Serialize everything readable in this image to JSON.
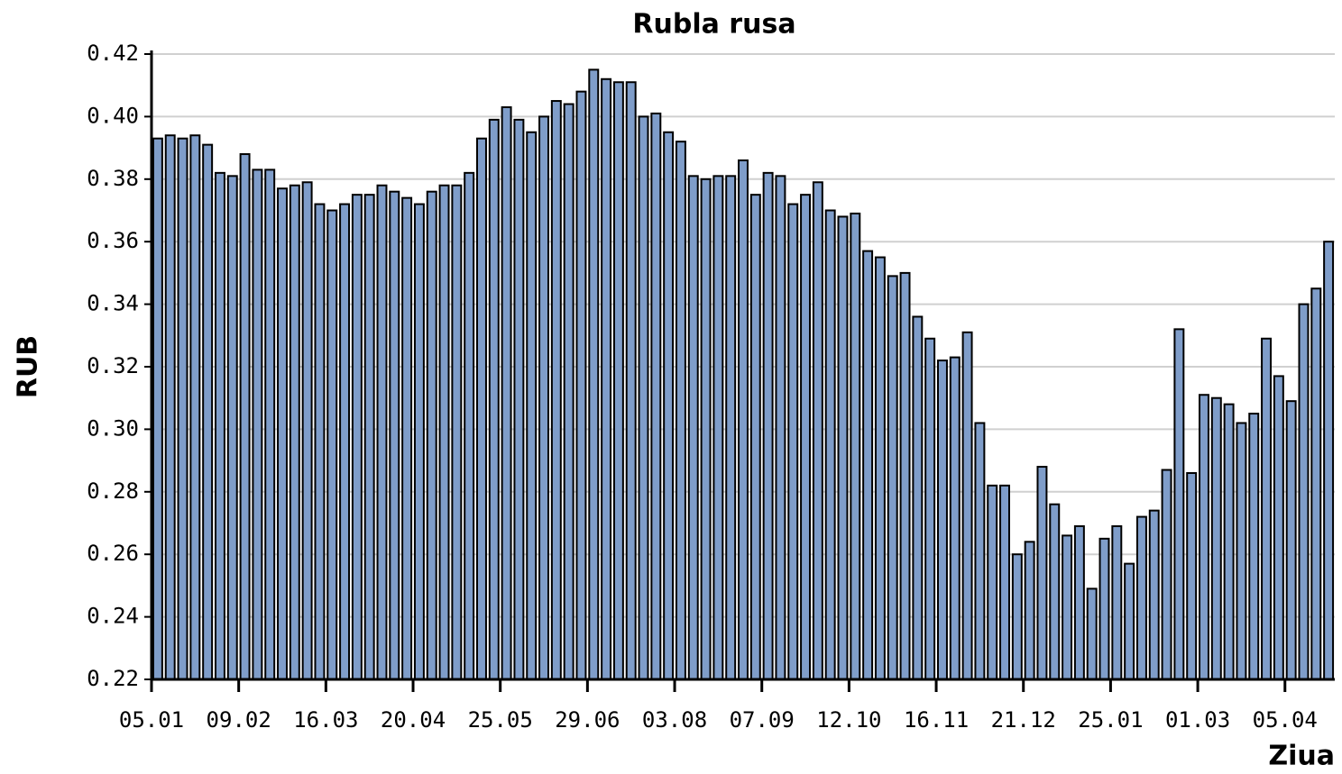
{
  "chart_data": {
    "type": "bar",
    "title": "Rubla rusa",
    "x_label": "Ziua",
    "y_label": "RUB",
    "color": "#7f9dc9",
    "grid": true,
    "ylim": [
      0.22,
      0.42
    ],
    "yticks": [
      {
        "value": 0.22,
        "label": "0.22"
      },
      {
        "value": 0.24,
        "label": "0.24"
      },
      {
        "value": 0.26,
        "label": "0.26"
      },
      {
        "value": 0.28,
        "label": "0.28"
      },
      {
        "value": 0.3,
        "label": "0.30"
      },
      {
        "value": 0.32,
        "label": "0.32"
      },
      {
        "value": 0.34,
        "label": "0.34"
      },
      {
        "value": 0.36,
        "label": "0.36"
      },
      {
        "value": 0.38,
        "label": "0.38"
      },
      {
        "value": 0.4,
        "label": "0.40"
      },
      {
        "value": 0.42,
        "label": "0.42"
      }
    ],
    "categories": [
      "05.01",
      null,
      null,
      null,
      null,
      null,
      null,
      "09.02",
      null,
      null,
      null,
      null,
      null,
      null,
      "16.03",
      null,
      null,
      null,
      null,
      null,
      null,
      "20.04",
      null,
      null,
      null,
      null,
      null,
      null,
      "25.05",
      null,
      null,
      null,
      null,
      null,
      null,
      "29.06",
      null,
      null,
      null,
      null,
      null,
      null,
      "03.08",
      null,
      null,
      null,
      null,
      null,
      null,
      "07.09",
      null,
      null,
      null,
      null,
      null,
      null,
      "12.10",
      null,
      null,
      null,
      null,
      null,
      null,
      "16.11",
      null,
      null,
      null,
      null,
      null,
      null,
      "21.12",
      null,
      null,
      null,
      null,
      null,
      null,
      "25.01",
      null,
      null,
      null,
      null,
      null,
      null,
      "01.03",
      null,
      null,
      null,
      null,
      null,
      null,
      "05.04",
      null,
      null,
      null
    ],
    "values": [
      0.393,
      0.394,
      0.393,
      0.394,
      0.391,
      0.382,
      0.381,
      0.388,
      0.383,
      0.383,
      0.377,
      0.378,
      0.379,
      0.372,
      0.37,
      0.372,
      0.375,
      0.375,
      0.378,
      0.376,
      0.374,
      0.372,
      0.376,
      0.378,
      0.378,
      0.382,
      0.393,
      0.399,
      0.403,
      0.399,
      0.395,
      0.4,
      0.405,
      0.404,
      0.408,
      0.415,
      0.412,
      0.411,
      0.411,
      0.4,
      0.401,
      0.395,
      0.392,
      0.381,
      0.38,
      0.381,
      0.381,
      0.386,
      0.375,
      0.382,
      0.381,
      0.372,
      0.375,
      0.379,
      0.37,
      0.368,
      0.369,
      0.357,
      0.355,
      0.349,
      0.35,
      0.336,
      0.329,
      0.322,
      0.323,
      0.331,
      0.302,
      0.282,
      0.282,
      0.26,
      0.264,
      0.288,
      0.276,
      0.266,
      0.269,
      0.249,
      0.265,
      0.269,
      0.257,
      0.272,
      0.274,
      0.287,
      0.332,
      0.286,
      0.311,
      0.31,
      0.308,
      0.302,
      0.305,
      0.329,
      0.317,
      0.309,
      0.34,
      0.345,
      0.36
    ]
  }
}
